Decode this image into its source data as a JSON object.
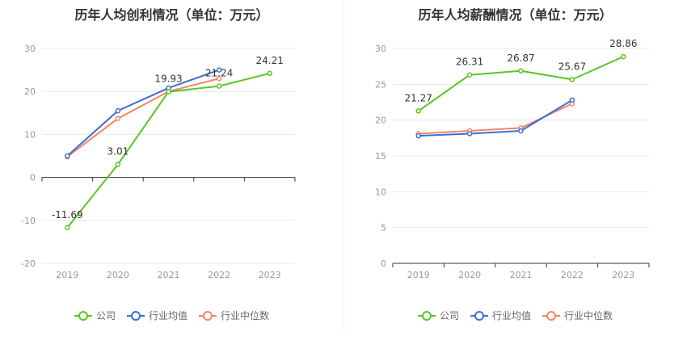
{
  "colors": {
    "company": "#5cc424",
    "industry_avg": "#3a6fd6",
    "industry_median": "#f0875f",
    "grid": "#e6e8f0",
    "axis": "#333333",
    "tick": "#999999"
  },
  "legend": {
    "company": "公司",
    "industry_avg": "行业均值",
    "industry_median": "行业中位数"
  },
  "chart_data": [
    {
      "type": "line",
      "title": "历年人均创利情况（单位：万元）",
      "categories": [
        "2019",
        "2020",
        "2021",
        "2022",
        "2023"
      ],
      "ylim": [
        -20,
        30
      ],
      "yticks": [
        -20,
        -10,
        0,
        10,
        20,
        30
      ],
      "grid": true,
      "legend_position": "bottom",
      "series": [
        {
          "key": "company",
          "name": "公司",
          "values": [
            -11.69,
            3.01,
            19.93,
            21.24,
            24.21
          ],
          "labels": [
            "-11.69",
            "3.01",
            "19.93",
            "21.24",
            "24.21"
          ]
        },
        {
          "key": "industry_avg",
          "name": "行业均值",
          "values": [
            5.0,
            15.5,
            20.8,
            25.0,
            null
          ]
        },
        {
          "key": "industry_median",
          "name": "行业中位数",
          "values": [
            4.8,
            13.7,
            20.0,
            23.0,
            null
          ]
        }
      ]
    },
    {
      "type": "line",
      "title": "历年人均薪酬情况（单位：万元）",
      "categories": [
        "2019",
        "2020",
        "2021",
        "2022",
        "2023"
      ],
      "ylim": [
        0,
        30
      ],
      "yticks": [
        0,
        5,
        10,
        15,
        20,
        25,
        30
      ],
      "grid": true,
      "legend_position": "bottom",
      "series": [
        {
          "key": "company",
          "name": "公司",
          "values": [
            21.27,
            26.31,
            26.87,
            25.67,
            28.86
          ],
          "labels": [
            "21.27",
            "26.31",
            "26.87",
            "25.67",
            "28.86"
          ]
        },
        {
          "key": "industry_avg",
          "name": "行业均值",
          "values": [
            17.8,
            18.1,
            18.5,
            22.8,
            null
          ]
        },
        {
          "key": "industry_median",
          "name": "行业中位数",
          "values": [
            18.1,
            18.5,
            18.9,
            22.3,
            null
          ]
        }
      ]
    }
  ]
}
